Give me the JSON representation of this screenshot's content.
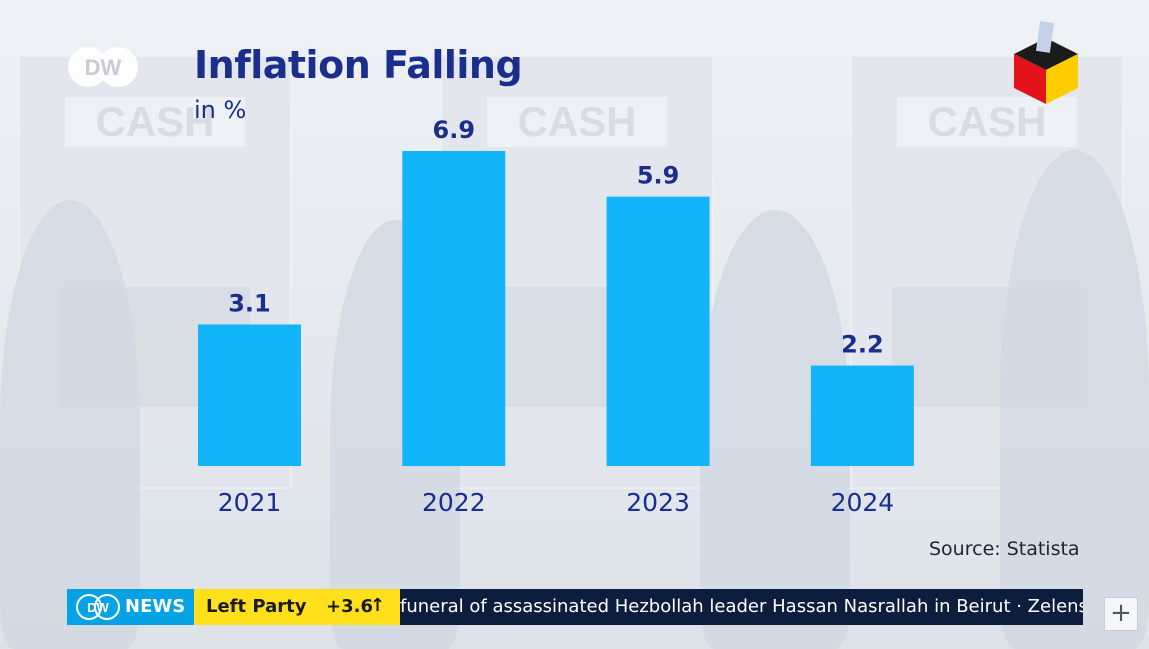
{
  "header": {
    "title": "Inflation Falling",
    "subtitle": "in %",
    "logo_text": "DW",
    "background_signs": [
      "CASH",
      "CASH",
      "CASH"
    ]
  },
  "chart_data": {
    "type": "bar",
    "title": "Inflation Falling",
    "ylabel": "in %",
    "categories": [
      "2021",
      "2022",
      "2023",
      "2024"
    ],
    "values": [
      3.1,
      6.9,
      5.9,
      2.2
    ],
    "value_labels": [
      "3.1",
      "6.9",
      "5.9",
      "2.2"
    ],
    "ylim": [
      0,
      6.9
    ],
    "grid": false,
    "bar_color": "#12b5fa",
    "label_color": "#1a2e8c"
  },
  "footer": {
    "source": "Source: Statista"
  },
  "ticker": {
    "brand_logo": "DW",
    "brand": "NEWS",
    "party": "Left Party",
    "delta": "+3.6",
    "delta_arrow": "↑",
    "headline": "funeral of assassinated Hezbollah leader Hassan Nasrallah in Beirut  ·  Zelens",
    "brand_color": "#05a3e5",
    "party_color": "#ffe01a",
    "bar_color": "#0c1d3d"
  },
  "controls": {
    "plus_label": "+"
  }
}
